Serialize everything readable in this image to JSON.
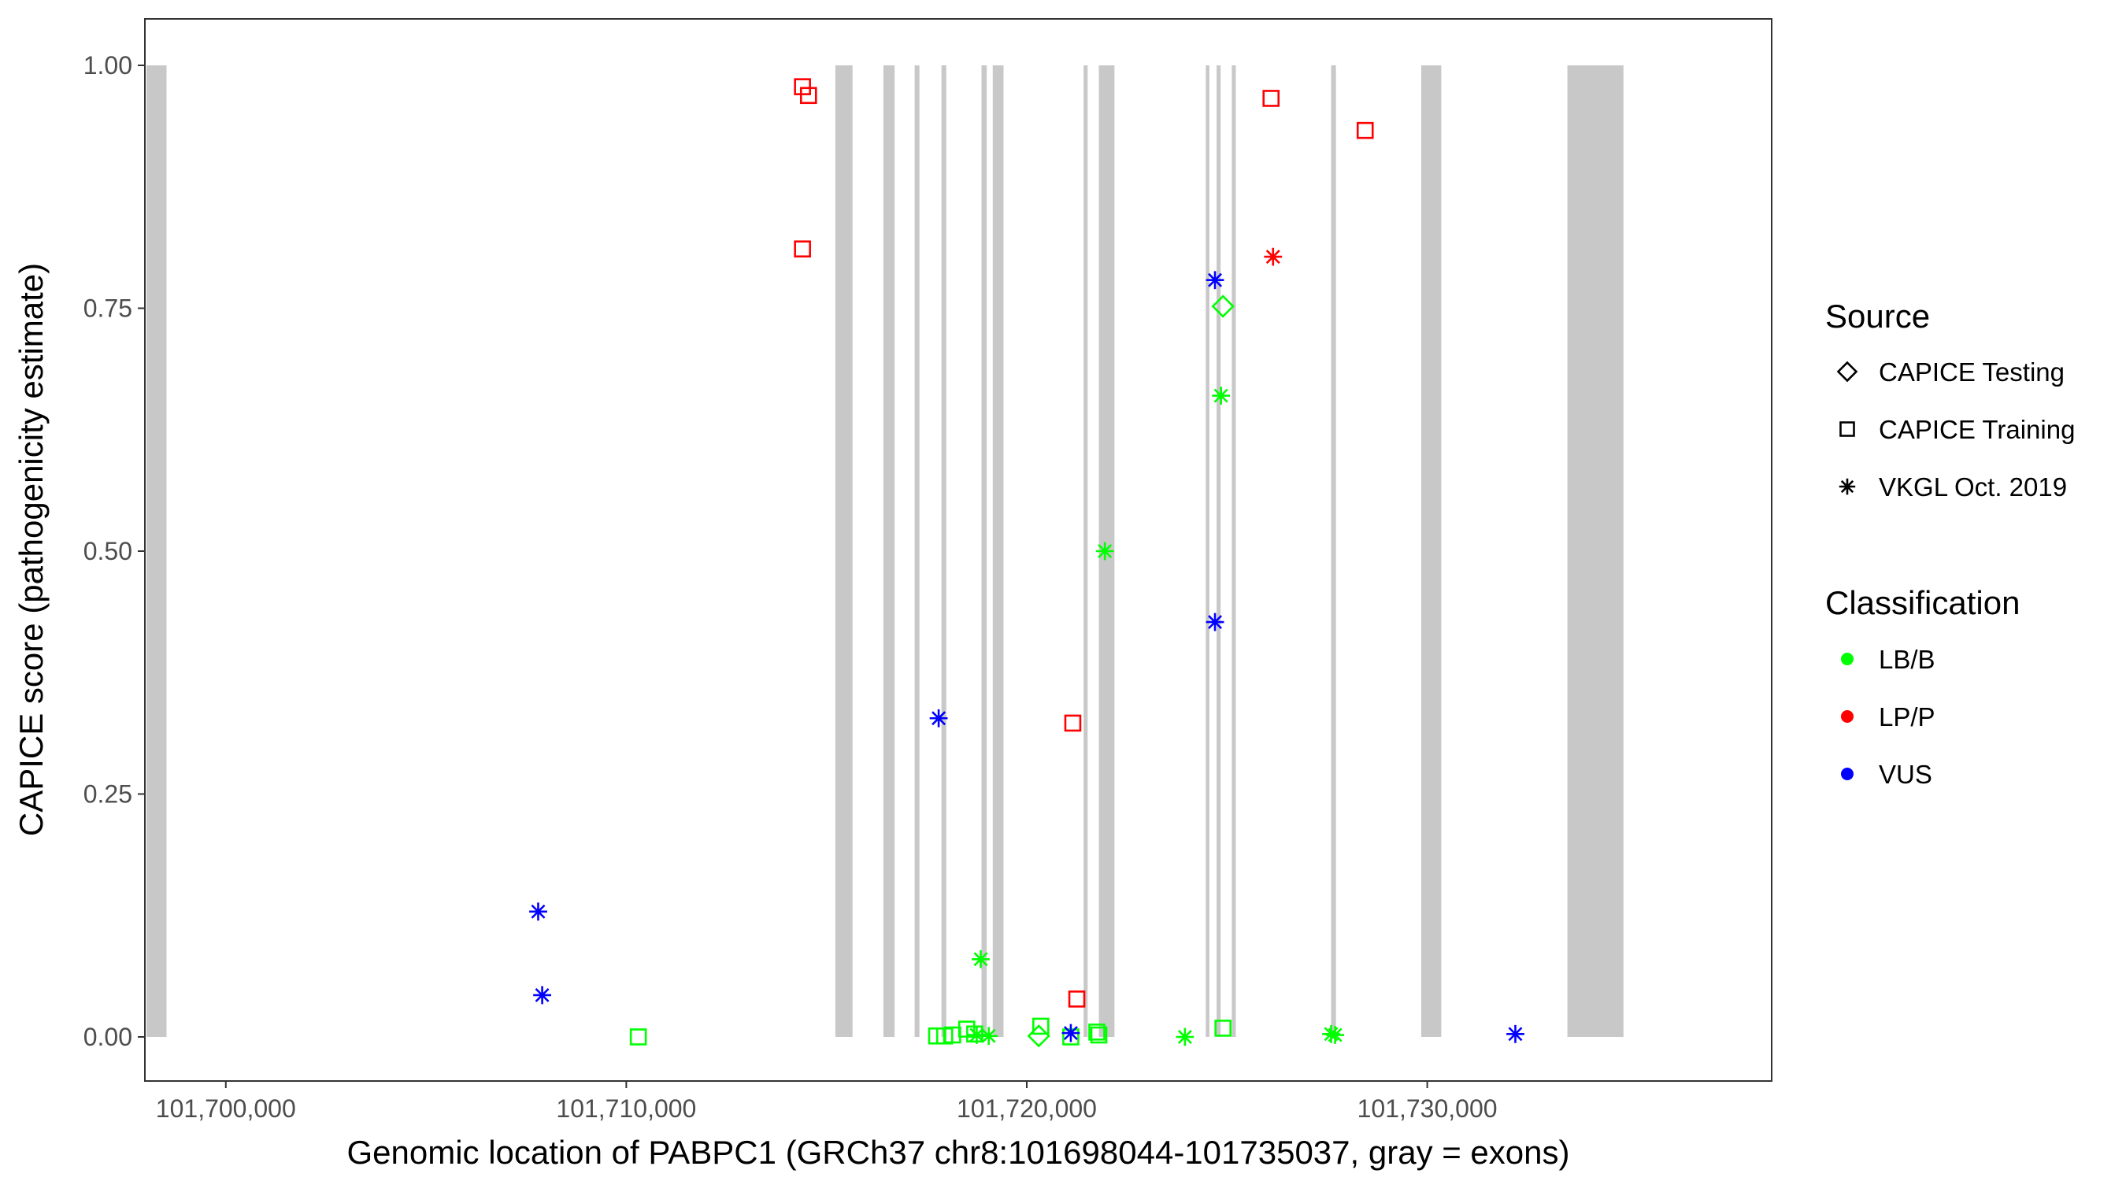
{
  "chart_data": {
    "type": "scatter",
    "xlabel": "Genomic location of PABPC1 (GRCh37 chr8:101698044-101735037, gray = exons)",
    "ylabel": "CAPICE score (pathogenicity estimate)",
    "xlim": [
      101698044,
      101735037
    ],
    "ylim": [
      0,
      1
    ],
    "x_ticks": [
      101700000,
      101710000,
      101720000,
      101730000
    ],
    "x_tick_labels": [
      "101,700,000",
      "101,710,000",
      "101,720,000",
      "101,730,000"
    ],
    "y_ticks": [
      0,
      0.25,
      0.5,
      0.75,
      1
    ],
    "y_tick_labels": [
      "0.00",
      "0.25",
      "0.50",
      "0.75",
      "1.00"
    ],
    "grid": false,
    "legend_position": "right",
    "exons": [
      [
        101698020,
        101698520
      ],
      [
        101715220,
        101715650
      ],
      [
        101716420,
        101716700
      ],
      [
        101717200,
        101717320
      ],
      [
        101717870,
        101717990
      ],
      [
        101718870,
        101719000
      ],
      [
        101719150,
        101719420
      ],
      [
        101721420,
        101721520
      ],
      [
        101721800,
        101722190
      ],
      [
        101724470,
        101724560
      ],
      [
        101724740,
        101724840
      ],
      [
        101725120,
        101725220
      ],
      [
        101727600,
        101727720
      ],
      [
        101729850,
        101730350
      ],
      [
        101733500,
        101734900
      ]
    ],
    "legends": [
      {
        "title": "Source",
        "kind": "shape",
        "items": [
          {
            "label": "CAPICE Testing",
            "shape": "diamond"
          },
          {
            "label": "CAPICE Training",
            "shape": "square"
          },
          {
            "label": "VKGL Oct. 2019",
            "shape": "asterisk"
          }
        ]
      },
      {
        "title": "Classification",
        "kind": "color",
        "items": [
          {
            "label": "LB/B",
            "color": "#00ff00"
          },
          {
            "label": "LP/P",
            "color": "#ff0000"
          },
          {
            "label": "VUS",
            "color": "#0000ff"
          }
        ]
      }
    ],
    "series": [
      {
        "source": "CAPICE Training",
        "classification": "LP/P",
        "points": [
          [
            101714400,
            0.978
          ],
          [
            101714550,
            0.969
          ],
          [
            101714400,
            0.811
          ],
          [
            101726100,
            0.966
          ],
          [
            101728450,
            0.933
          ],
          [
            101721150,
            0.323
          ],
          [
            101721250,
            0.039
          ]
        ]
      },
      {
        "source": "CAPICE Training",
        "classification": "LB/B",
        "points": [
          [
            101710300,
            0.0
          ],
          [
            101717750,
            0.001
          ],
          [
            101717950,
            0.001
          ],
          [
            101718150,
            0.002
          ],
          [
            101718500,
            0.008
          ],
          [
            101718700,
            0.003
          ],
          [
            101720350,
            0.011
          ],
          [
            101721100,
            0.0
          ],
          [
            101721750,
            0.005
          ],
          [
            101721800,
            0.002
          ],
          [
            101724900,
            0.009
          ]
        ]
      },
      {
        "source": "CAPICE Testing",
        "classification": "LB/B",
        "points": [
          [
            101724900,
            0.752
          ],
          [
            101720300,
            0.001
          ]
        ]
      },
      {
        "source": "VKGL Oct. 2019",
        "classification": "VUS",
        "points": [
          [
            101707800,
            0.129
          ],
          [
            101707900,
            0.043
          ],
          [
            101717800,
            0.328
          ],
          [
            101724700,
            0.779
          ],
          [
            101724700,
            0.427
          ],
          [
            101721100,
            0.004
          ],
          [
            101732200,
            0.003
          ]
        ]
      },
      {
        "source": "VKGL Oct. 2019",
        "classification": "LP/P",
        "points": [
          [
            101726150,
            0.803
          ]
        ]
      },
      {
        "source": "VKGL Oct. 2019",
        "classification": "LB/B",
        "points": [
          [
            101724850,
            0.66
          ],
          [
            101721950,
            0.5
          ],
          [
            101718850,
            0.08
          ],
          [
            101718750,
            0.002
          ],
          [
            101719050,
            0.001
          ],
          [
            101723950,
            0.0
          ],
          [
            101727600,
            0.003
          ],
          [
            101727700,
            0.002
          ]
        ]
      }
    ]
  }
}
